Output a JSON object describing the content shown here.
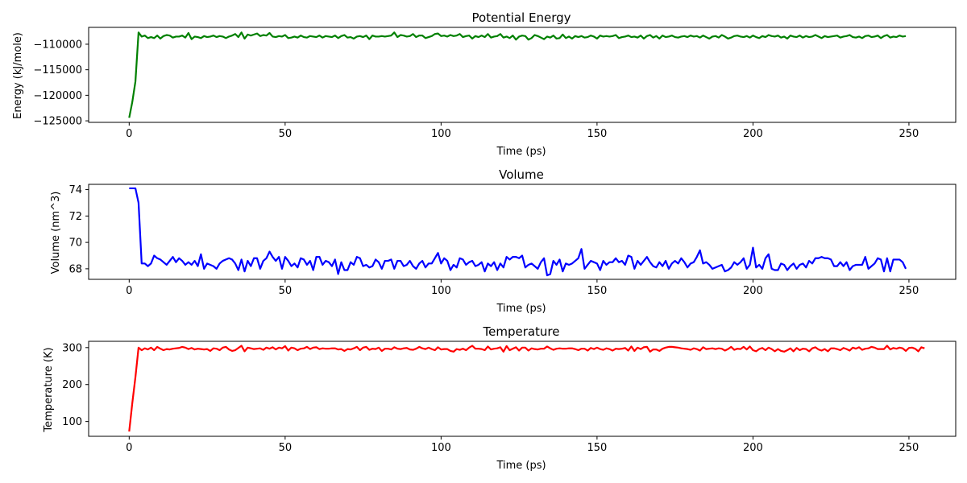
{
  "chart_data": [
    {
      "type": "line",
      "title": "Potential Energy",
      "xlabel": "Time (ps)",
      "ylabel": "Energy (kJ/mole)",
      "color": "#008000",
      "xlim": [
        -13,
        265
      ],
      "ylim": [
        -125300,
        -106700
      ],
      "xticks": [
        0,
        50,
        100,
        150,
        200,
        250
      ],
      "yticks": [
        -125000,
        -120000,
        -115000,
        -110000
      ],
      "ytick_labels": [
        "−125000",
        "−120000",
        "−115000",
        "−110000"
      ],
      "x_start": 0,
      "x_step": 1,
      "values": [
        -124400,
        -121300,
        -117300,
        -107700,
        -108500,
        -108300,
        -108800,
        -108600,
        -108800,
        -108300,
        -108900,
        -108400,
        -108200,
        -108300,
        -108700,
        -108500,
        -108500,
        -108300,
        -108700,
        -107800,
        -109000,
        -108500,
        -108600,
        -108800,
        -108400,
        -108600,
        -108500,
        -108300,
        -108600,
        -108400,
        -108500,
        -108800,
        -108500,
        -108300,
        -108000,
        -108600,
        -107700,
        -108900,
        -108100,
        -108300,
        -108100,
        -107900,
        -108400,
        -108200,
        -108300,
        -107800,
        -108500,
        -108600,
        -108400,
        -108500,
        -108200,
        -108800,
        -108700,
        -108500,
        -108700,
        -108300,
        -108600,
        -108700,
        -108400,
        -108500,
        -108600,
        -108300,
        -108700,
        -108400,
        -108500,
        -108600,
        -108300,
        -108800,
        -108400,
        -108200,
        -108700,
        -108600,
        -108900,
        -108500,
        -108400,
        -108600,
        -108300,
        -109000,
        -108300,
        -108500,
        -108500,
        -108400,
        -108500,
        -108400,
        -108300,
        -107700,
        -108600,
        -108200,
        -108300,
        -108500,
        -108400,
        -108000,
        -108600,
        -108300,
        -108300,
        -108800,
        -108600,
        -108400,
        -108000,
        -107900,
        -108400,
        -108300,
        -108500,
        -108200,
        -108400,
        -108300,
        -108000,
        -108600,
        -108400,
        -108300,
        -108900,
        -108400,
        -108600,
        -108300,
        -108600,
        -108000,
        -108700,
        -108500,
        -108400,
        -108000,
        -108700,
        -108500,
        -108800,
        -108300,
        -109100,
        -108500,
        -108300,
        -108400,
        -109100,
        -108800,
        -108200,
        -108400,
        -108700,
        -109000,
        -108500,
        -108700,
        -108300,
        -108900,
        -108800,
        -108100,
        -108800,
        -108500,
        -108900,
        -108400,
        -108600,
        -108400,
        -108700,
        -108600,
        -108300,
        -108500,
        -108900,
        -108300,
        -108500,
        -108400,
        -108500,
        -108400,
        -108200,
        -108800,
        -108600,
        -108500,
        -108300,
        -108600,
        -108500,
        -108700,
        -108300,
        -108900,
        -108400,
        -108200,
        -108700,
        -108400,
        -108900,
        -108300,
        -108600,
        -108500,
        -108300,
        -108600,
        -108700,
        -108500,
        -108400,
        -108600,
        -108300,
        -108500,
        -108400,
        -108700,
        -108300,
        -108600,
        -108900,
        -108500,
        -108400,
        -108700,
        -108200,
        -108500,
        -108900,
        -108700,
        -108400,
        -108300,
        -108500,
        -108600,
        -108400,
        -108700,
        -108300,
        -108600,
        -108800,
        -108400,
        -108600,
        -108200,
        -108400,
        -108500,
        -108300,
        -108700,
        -108500,
        -108900,
        -108300,
        -108500,
        -108600,
        -108300,
        -108700,
        -108400,
        -108600,
        -108500,
        -108200,
        -108500,
        -108800,
        -108400,
        -108600,
        -108500,
        -108400,
        -108300,
        -108700,
        -108500,
        -108400,
        -108200,
        -108600,
        -108700,
        -108500,
        -108800,
        -108400,
        -108300,
        -108600,
        -108500,
        -108300,
        -108800,
        -108400,
        -108200,
        -108700,
        -108500,
        -108600,
        -108300,
        -108500,
        -108400
      ]
    },
    {
      "type": "line",
      "title": "Volume",
      "xlabel": "Time (ps)",
      "ylabel": "Volume (nm^3)",
      "color": "#0000ff",
      "xlim": [
        -13,
        265
      ],
      "ylim": [
        67.2,
        74.4
      ],
      "xticks": [
        0,
        50,
        100,
        150,
        200,
        250
      ],
      "yticks": [
        68,
        70,
        72,
        74
      ],
      "ytick_labels": [
        "68",
        "70",
        "72",
        "74"
      ],
      "x_start": 0,
      "x_step": 1,
      "values": [
        74.1,
        74.1,
        74.1,
        73.0,
        68.4,
        68.4,
        68.2,
        68.4,
        69.0,
        68.8,
        68.7,
        68.5,
        68.3,
        68.6,
        68.9,
        68.5,
        68.8,
        68.6,
        68.3,
        68.5,
        68.3,
        68.6,
        68.2,
        69.1,
        68.0,
        68.4,
        68.3,
        68.2,
        68.0,
        68.4,
        68.6,
        68.7,
        68.8,
        68.7,
        68.4,
        67.9,
        68.7,
        67.8,
        68.6,
        68.2,
        68.8,
        68.8,
        68.0,
        68.6,
        68.8,
        69.3,
        68.9,
        68.6,
        68.9,
        68.0,
        68.9,
        68.6,
        68.2,
        68.4,
        68.1,
        68.8,
        68.7,
        68.3,
        68.6,
        67.9,
        68.9,
        68.9,
        68.3,
        68.6,
        68.5,
        68.2,
        68.7,
        67.6,
        68.5,
        67.9,
        67.9,
        68.5,
        68.3,
        68.9,
        68.8,
        68.2,
        68.3,
        68.1,
        68.2,
        68.7,
        68.5,
        68.0,
        68.6,
        68.6,
        68.7,
        68.0,
        68.6,
        68.6,
        68.2,
        68.3,
        68.6,
        68.2,
        68.0,
        68.4,
        68.6,
        68.1,
        68.4,
        68.4,
        68.8,
        69.2,
        68.4,
        68.8,
        68.6,
        67.9,
        68.3,
        68.1,
        68.8,
        68.7,
        68.3,
        68.5,
        68.6,
        68.2,
        68.3,
        68.5,
        67.8,
        68.4,
        68.2,
        68.5,
        67.9,
        68.4,
        68.1,
        68.9,
        68.7,
        68.9,
        68.9,
        68.8,
        69.0,
        68.1,
        68.3,
        68.4,
        68.2,
        68.0,
        68.5,
        68.8,
        67.5,
        67.6,
        68.6,
        68.3,
        68.7,
        67.8,
        68.4,
        68.3,
        68.4,
        68.6,
        68.8,
        69.5,
        68.0,
        68.3,
        68.6,
        68.5,
        68.4,
        67.9,
        68.6,
        68.3,
        68.5,
        68.5,
        68.8,
        68.5,
        68.6,
        68.3,
        69.0,
        68.9,
        68.0,
        68.6,
        68.3,
        68.6,
        68.9,
        68.5,
        68.2,
        68.1,
        68.5,
        68.2,
        68.6,
        68.0,
        68.4,
        68.6,
        68.4,
        68.8,
        68.5,
        68.1,
        68.4,
        68.5,
        68.9,
        69.4,
        68.4,
        68.5,
        68.3,
        68.0,
        68.1,
        68.2,
        68.3,
        67.8,
        67.9,
        68.1,
        68.5,
        68.3,
        68.5,
        68.8,
        68.0,
        68.3,
        69.6,
        68.1,
        68.3,
        68.0,
        68.8,
        69.1,
        68.0,
        67.9,
        67.9,
        68.4,
        68.3,
        67.9,
        68.2,
        68.4,
        68.0,
        68.3,
        68.4,
        68.1,
        68.6,
        68.4,
        68.8,
        68.8,
        68.9,
        68.8,
        68.8,
        68.7,
        68.2,
        68.2,
        68.5,
        68.2,
        68.5,
        67.9,
        68.2,
        68.3,
        68.3,
        68.3,
        68.9,
        68.0,
        68.2,
        68.4,
        68.8,
        68.7,
        67.8,
        68.8,
        67.8,
        68.7,
        68.7,
        68.7,
        68.5,
        68.0
      ]
    },
    {
      "type": "line",
      "title": "Temperature",
      "xlabel": "Time (ps)",
      "ylabel": "Temperature (K)",
      "color": "#ff0000",
      "xlim": [
        -13,
        265
      ],
      "ylim": [
        60,
        317
      ],
      "xticks": [
        0,
        50,
        100,
        150,
        200,
        250
      ],
      "yticks": [
        100,
        200,
        300
      ],
      "ytick_labels": [
        "100",
        "200",
        "300"
      ],
      "x_start": 0,
      "x_step": 1,
      "values": [
        73,
        150,
        220,
        300,
        293,
        298,
        295,
        300,
        293,
        302,
        297,
        293,
        296,
        295,
        297,
        298,
        299,
        302,
        300,
        296,
        299,
        295,
        297,
        296,
        295,
        296,
        291,
        298,
        297,
        293,
        300,
        302,
        295,
        291,
        293,
        299,
        305,
        290,
        300,
        298,
        296,
        297,
        298,
        294,
        300,
        297,
        301,
        295,
        300,
        298,
        304,
        292,
        300,
        298,
        293,
        297,
        298,
        302,
        296,
        300,
        301,
        296,
        298,
        297,
        297,
        298,
        298,
        295,
        296,
        291,
        296,
        295,
        298,
        302,
        293,
        300,
        302,
        294,
        297,
        296,
        300,
        291,
        297,
        297,
        295,
        301,
        297,
        296,
        298,
        299,
        295,
        294,
        297,
        302,
        298,
        296,
        300,
        296,
        293,
        301,
        295,
        296,
        296,
        291,
        289,
        296,
        294,
        297,
        293,
        300,
        305,
        297,
        297,
        296,
        293,
        303,
        295,
        297,
        298,
        301,
        289,
        304,
        293,
        297,
        301,
        292,
        300,
        300,
        292,
        298,
        296,
        295,
        297,
        297,
        303,
        298,
        294,
        297,
        298,
        297,
        297,
        298,
        298,
        296,
        293,
        297,
        297,
        292,
        299,
        296,
        300,
        296,
        294,
        298,
        296,
        292,
        297,
        296,
        297,
        299,
        292,
        303,
        291,
        300,
        296,
        301,
        302,
        289,
        295,
        295,
        291,
        297,
        300,
        302,
        302,
        301,
        300,
        298,
        297,
        296,
        294,
        298,
        296,
        292,
        301,
        296,
        297,
        298,
        296,
        298,
        297,
        292,
        296,
        302,
        294,
        297,
        296,
        302,
        295,
        303,
        293,
        290,
        296,
        299,
        293,
        300,
        296,
        290,
        296,
        291,
        289,
        293,
        298,
        290,
        299,
        293,
        297,
        296,
        290,
        298,
        301,
        295,
        292,
        296,
        290,
        298,
        298,
        296,
        293,
        299,
        296,
        292,
        300,
        297,
        301,
        294,
        297,
        298,
        302,
        300,
        296,
        296,
        296,
        305,
        295,
        299,
        297,
        300,
        298,
        291,
        299,
        300,
        297,
        290,
        301,
        298
      ]
    }
  ]
}
